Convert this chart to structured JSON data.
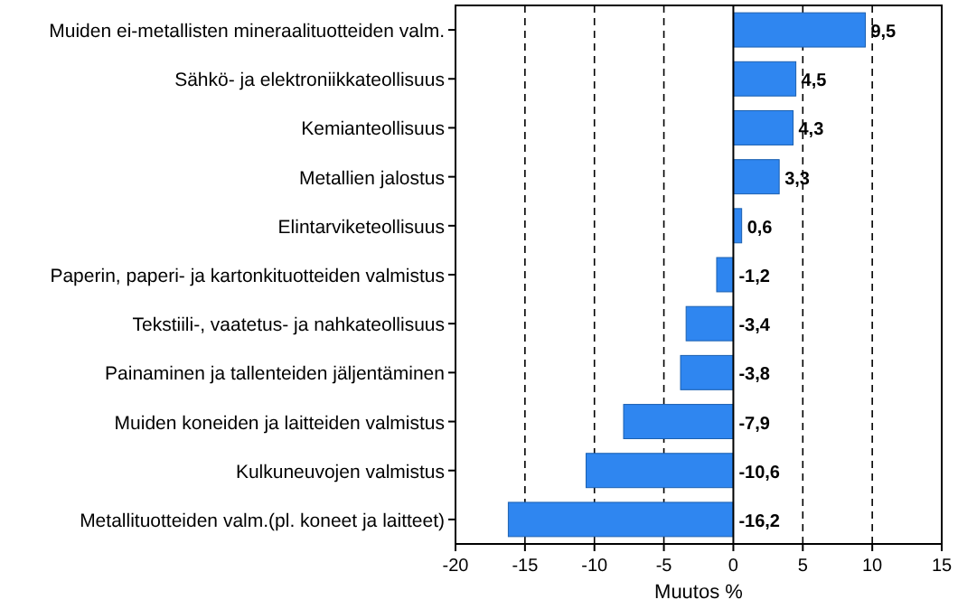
{
  "chart_data": {
    "type": "bar",
    "orientation": "horizontal",
    "xlabel": "Muutos %",
    "categories": [
      "Muiden ei-metallisten mineraalituotteiden valm.",
      "Sähkö- ja elektroniikkateollisuus",
      "Kemianteollisuus",
      "Metallien jalostus",
      "Elintarviketeollisuus",
      "Paperin, paperi- ja kartonkituotteiden valmistus",
      "Tekstiili-, vaatetus- ja nahkateollisuus",
      "Painaminen ja tallenteiden jäljentäminen",
      "Muiden koneiden ja laitteiden valmistus",
      "Kulkuneuvojen valmistus",
      "Metallituotteiden valm.(pl. koneet ja laitteet)"
    ],
    "values": [
      9.5,
      4.5,
      4.3,
      3.3,
      0.6,
      -1.2,
      -3.4,
      -3.8,
      -7.9,
      -10.6,
      -16.2
    ],
    "value_labels": [
      "9,5",
      "4,5",
      "4,3",
      "3,3",
      "0,6",
      "-1,2",
      "-3,4",
      "-3,8",
      "-7,9",
      "-10,6",
      "-16,2"
    ],
    "color": "#2f86f0",
    "xlim": [
      -20,
      15
    ],
    "xticks": [
      -20,
      -15,
      -10,
      -5,
      0,
      5,
      10,
      15
    ],
    "grid": "x"
  }
}
